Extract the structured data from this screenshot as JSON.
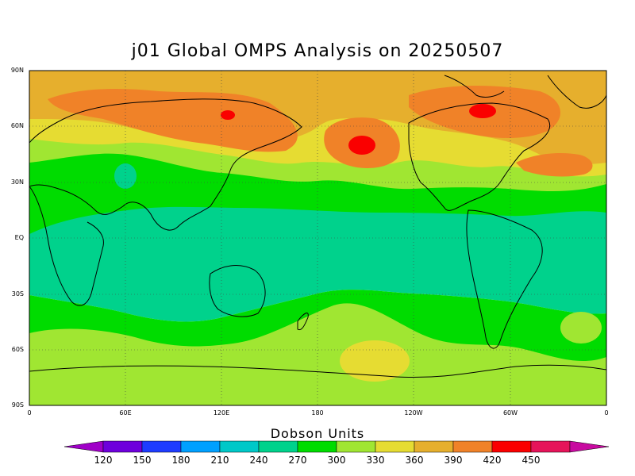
{
  "title": "j01 Global OMPS Analysis on 20250507",
  "lat_labels": [
    "90N",
    "60N",
    "30N",
    "EQ",
    "30S",
    "60S",
    "90S"
  ],
  "lon_labels": [
    "0",
    "60E",
    "120E",
    "180",
    "120W",
    "60W",
    "0"
  ],
  "colorbar": {
    "title": "Dobson Units",
    "levels": [
      "120",
      "150",
      "180",
      "210",
      "240",
      "270",
      "300",
      "330",
      "360",
      "390",
      "420",
      "450"
    ],
    "colors": [
      "#a000c8",
      "#6e00dc",
      "#1e3cff",
      "#00a0ff",
      "#00c8c8",
      "#00d28c",
      "#00dc00",
      "#a0e632",
      "#e6dc32",
      "#e6af2d",
      "#f08228",
      "#fa0000",
      "#e6145a",
      "#c80aa0"
    ]
  },
  "map_colors": {
    "band_330_360": "#a0e632",
    "band_300_330": "#00dc00",
    "band_270_300": "#00d28c",
    "band_360_390": "#e6dc32",
    "band_390_420": "#e6af2d",
    "band_420_450": "#f08228",
    "band_450_plus": "#fa0000"
  }
}
